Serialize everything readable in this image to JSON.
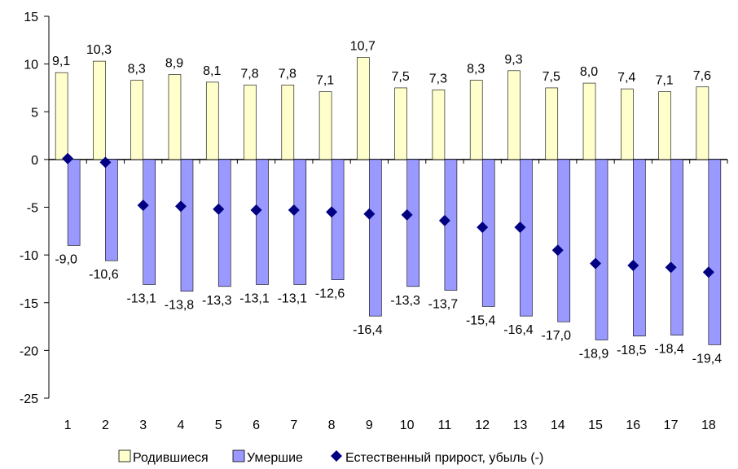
{
  "chart_data": {
    "type": "bar",
    "categories": [
      "1",
      "2",
      "3",
      "4",
      "5",
      "6",
      "7",
      "8",
      "9",
      "10",
      "11",
      "12",
      "13",
      "14",
      "15",
      "16",
      "17",
      "18"
    ],
    "series": [
      {
        "name": "Родившиеся",
        "type": "bar",
        "color": "#ffffcc",
        "values": [
          9.1,
          10.3,
          8.3,
          8.9,
          8.1,
          7.8,
          7.8,
          7.1,
          10.7,
          7.5,
          7.3,
          8.3,
          9.3,
          7.5,
          8.0,
          7.4,
          7.1,
          7.6
        ],
        "labels": [
          "9,1",
          "10,3",
          "8,3",
          "8,9",
          "8,1",
          "7,8",
          "7,8",
          "7,1",
          "10,7",
          "7,5",
          "7,3",
          "8,3",
          "9,3",
          "7,5",
          "8,0",
          "7,4",
          "7,1",
          "7,6"
        ]
      },
      {
        "name": "Умершие",
        "type": "bar",
        "color": "#9999ff",
        "values": [
          -9.0,
          -10.6,
          -13.1,
          -13.8,
          -13.3,
          -13.1,
          -13.1,
          -12.6,
          -16.4,
          -13.3,
          -13.7,
          -15.4,
          -16.4,
          -17.0,
          -18.9,
          -18.5,
          -18.4,
          -19.4
        ],
        "labels": [
          "-9,0",
          "-10,6",
          "-13,1",
          "-13,8",
          "-13,3",
          "-13,1",
          "-13,1",
          "-12,6",
          "-16,4",
          "-13,3",
          "-13,7",
          "-15,4",
          "-16,4",
          "-17,0",
          "-18,9",
          "-18,5",
          "-18,4",
          "-19,4"
        ]
      },
      {
        "name": "Естественный прирост, убыль (-)",
        "type": "scatter",
        "marker": "diamond",
        "color": "#000080",
        "values": [
          0.1,
          -0.3,
          -4.8,
          -4.9,
          -5.2,
          -5.3,
          -5.3,
          -5.5,
          -5.7,
          -5.8,
          -6.4,
          -7.1,
          -7.1,
          -9.5,
          -10.9,
          -11.1,
          -11.3,
          -11.8
        ]
      }
    ],
    "y_ticks": [
      15,
      10,
      5,
      0,
      -5,
      -10,
      -15,
      -20,
      -25
    ],
    "ylim": [
      -25,
      15
    ],
    "grid": false,
    "legend_position": "bottom"
  }
}
